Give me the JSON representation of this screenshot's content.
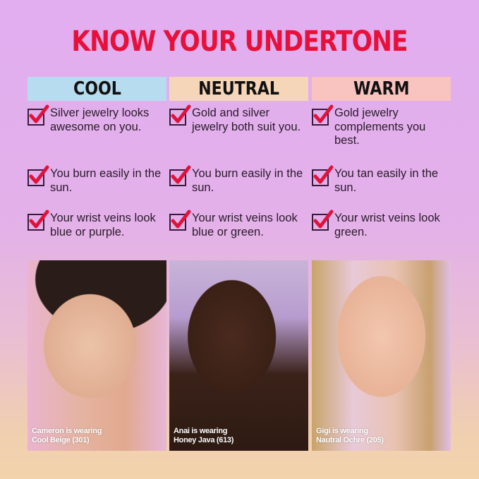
{
  "title": "KNOW YOUR UNDERTONE",
  "columns": [
    {
      "label": "COOL",
      "color": "#b7dcef",
      "items": [
        "Silver jewelry looks awesome on you.",
        "You burn easily in the sun.",
        "Your wrist veins look blue or purple."
      ],
      "caption": [
        "Cameron is wearing",
        "Cool Beige (301)"
      ]
    },
    {
      "label": "NEUTRAL",
      "color": "#f5d6b9",
      "items": [
        "Gold and silver jewelry both suit you.",
        "You burn easily in the sun.",
        "Your wrist veins look blue or green."
      ],
      "caption": [
        "Anai is wearing",
        "Honey Java (613)"
      ]
    },
    {
      "label": "WARM",
      "color": "#f9c3c0",
      "items": [
        "Gold jewelry complements you best.",
        "You tan easily in the sun.",
        "Your wrist veins look green."
      ],
      "caption": [
        "Gigi is wearing",
        "Nautral Ochre (205)"
      ]
    }
  ],
  "colors": {
    "title": "#e8103a",
    "check": "#e0123c"
  }
}
